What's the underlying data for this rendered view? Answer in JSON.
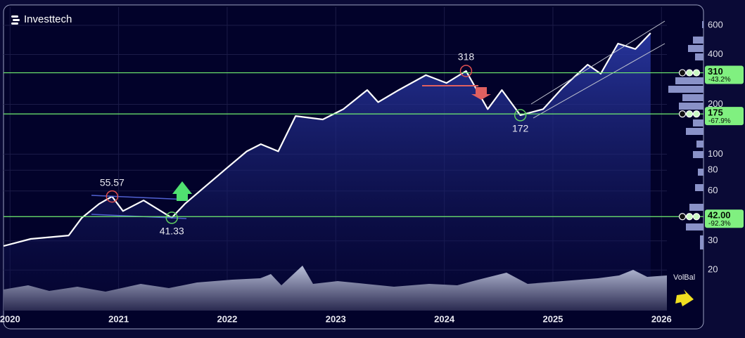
{
  "logo": "Investtech",
  "chart_data": {
    "type": "line",
    "x": [
      2019.94,
      2020.19,
      2020.54,
      2020.66,
      2020.82,
      2020.94,
      2021.04,
      2021.23,
      2021.49,
      2021.61,
      2021.8,
      2021.99,
      2022.18,
      2022.31,
      2022.47,
      2022.63,
      2022.88,
      2023.07,
      2023.29,
      2023.39,
      2023.58,
      2023.83,
      2024.02,
      2024.2,
      2024.27,
      2024.4,
      2024.53,
      2024.7,
      2024.91,
      2025.09,
      2025.32,
      2025.44,
      2025.6,
      2025.76,
      2025.9
    ],
    "values": [
      27.9,
      30.8,
      32.3,
      41.2,
      50.1,
      55.57,
      45.4,
      52.6,
      41.33,
      50.1,
      64,
      81.7,
      104,
      115,
      104,
      170,
      162,
      187,
      244,
      206,
      244,
      300,
      269,
      318,
      264,
      187,
      244,
      172,
      187,
      252,
      347,
      306,
      465,
      431,
      538
    ],
    "color": "#ffffff",
    "log_scale": true,
    "ylim": [
      11.6,
      773
    ],
    "yticks": [
      20,
      30,
      60,
      80,
      100,
      200,
      400,
      600
    ],
    "xlim": [
      2019.94,
      2026.05
    ],
    "xticks": [
      2020,
      2021,
      2022,
      2023,
      2024,
      2025,
      2026
    ],
    "grid": true,
    "levels": [
      {
        "value": 310,
        "change": "-43.2%"
      },
      {
        "value": 175,
        "change": "-67.9%"
      },
      {
        "value": 42,
        "label": "42.00",
        "change": "-92.3%"
      }
    ],
    "annotations": [
      {
        "x": 2020.94,
        "value": 55.57,
        "kind": "top"
      },
      {
        "x": 2021.49,
        "value": 41.33,
        "kind": "bottom"
      },
      {
        "x": 2024.2,
        "value": 318,
        "kind": "top"
      },
      {
        "x": 2024.7,
        "value": 172,
        "kind": "bottom"
      }
    ],
    "indicator": "VolBal"
  }
}
